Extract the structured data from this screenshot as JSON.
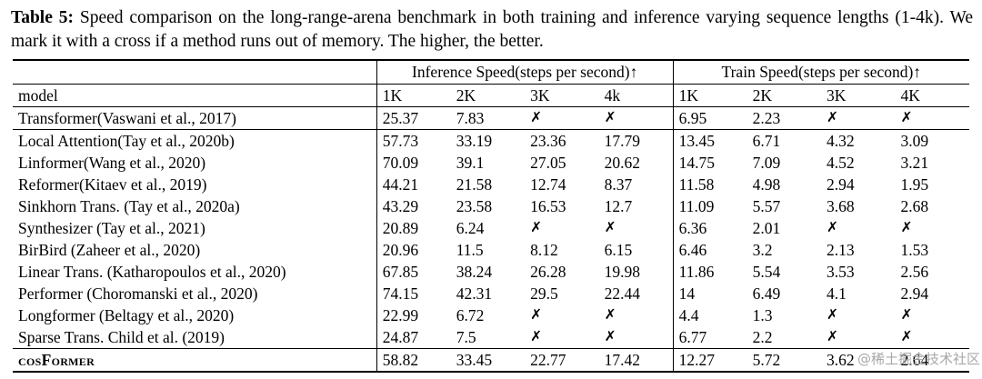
{
  "caption": {
    "label": "Table 5:",
    "text": "Speed comparison on the long-range-arena benchmark in both training and inference varying sequence lengths (1-4k). We mark it with a cross if a method runs out of memory. The higher, the better."
  },
  "table": {
    "group_headers": [
      "Inference Speed(steps per second)↑",
      "Train Speed(steps per second)↑"
    ],
    "model_header": "model",
    "seq_headers": [
      "1K",
      "2K",
      "3K",
      "4k",
      "1K",
      "2K",
      "3K",
      "4K"
    ],
    "oom_symbol": "✗",
    "rows": [
      {
        "model": "Transformer(Vaswani et al., 2017)",
        "values": [
          "25.37",
          "7.83",
          "✗",
          "✗",
          "6.95",
          "2.23",
          "✗",
          "✗"
        ]
      },
      {
        "model": "Local Attention(Tay et al., 2020b)",
        "values": [
          "57.73",
          "33.19",
          "23.36",
          "17.79",
          "13.45",
          "6.71",
          "4.32",
          "3.09"
        ]
      },
      {
        "model": "Linformer(Wang et al., 2020)",
        "values": [
          "70.09",
          "39.1",
          "27.05",
          "20.62",
          "14.75",
          "7.09",
          "4.52",
          "3.21"
        ]
      },
      {
        "model": "Reformer(Kitaev et al., 2019)",
        "values": [
          "44.21",
          "21.58",
          "12.74",
          "8.37",
          "11.58",
          "4.98",
          "2.94",
          "1.95"
        ]
      },
      {
        "model": "Sinkhorn Trans. (Tay et al., 2020a)",
        "values": [
          "43.29",
          "23.58",
          "16.53",
          "12.7",
          "11.09",
          "5.57",
          "3.68",
          "2.68"
        ]
      },
      {
        "model": "Synthesizer (Tay et al., 2021)",
        "values": [
          "20.89",
          "6.24",
          "✗",
          "✗",
          "6.36",
          "2.01",
          "✗",
          "✗"
        ]
      },
      {
        "model": "BirBird (Zaheer et al., 2020)",
        "values": [
          "20.96",
          "11.5",
          "8.12",
          "6.15",
          "6.46",
          "3.2",
          "2.13",
          "1.53"
        ]
      },
      {
        "model": "Linear Trans. (Katharopoulos et al., 2020)",
        "values": [
          "67.85",
          "38.24",
          "26.28",
          "19.98",
          "11.86",
          "5.54",
          "3.53",
          "2.56"
        ]
      },
      {
        "model": "Performer (Choromanski et al., 2020)",
        "values": [
          "74.15",
          "42.31",
          "29.5",
          "22.44",
          "14",
          "6.49",
          "4.1",
          "2.94"
        ]
      },
      {
        "model": "Longformer (Beltagy et al., 2020)",
        "values": [
          "22.99",
          "6.72",
          "✗",
          "✗",
          "4.4",
          "1.3",
          "✗",
          "✗"
        ]
      },
      {
        "model": "Sparse Trans. Child et al. (2019)",
        "values": [
          "24.87",
          "7.5",
          "✗",
          "✗",
          "6.77",
          "2.2",
          "✗",
          "✗"
        ]
      },
      {
        "model": "cosFormer",
        "values": [
          "58.82",
          "33.45",
          "22.77",
          "17.42",
          "12.27",
          "5.72",
          "3.62",
          "2.64"
        ],
        "highlight": true
      }
    ]
  },
  "watermark": {
    "text": "@稀土掘金技术社区"
  }
}
